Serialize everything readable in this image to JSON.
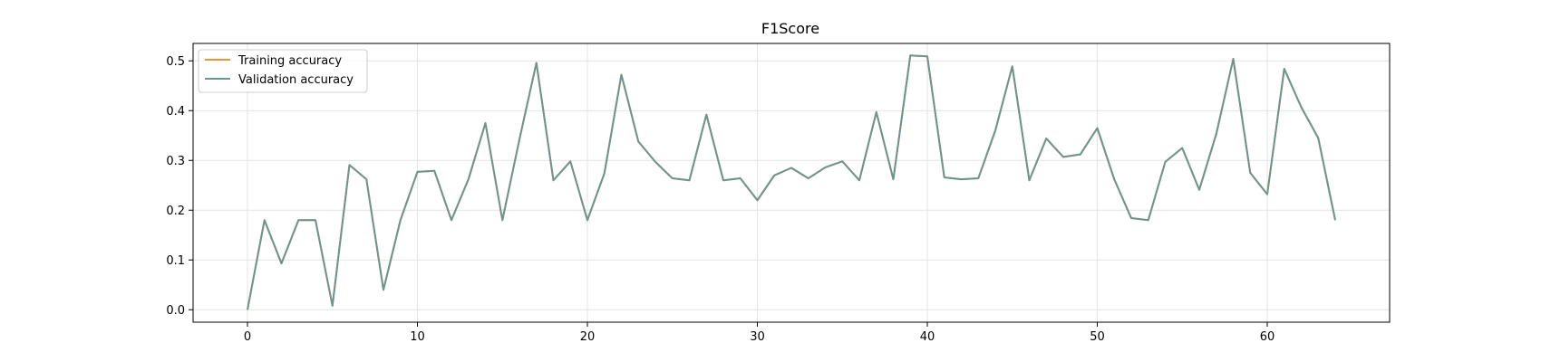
{
  "chart_data": {
    "type": "line",
    "title": "F1Score",
    "xlabel": "",
    "ylabel": "",
    "xlim": [
      -3.2,
      67.2
    ],
    "ylim": [
      -0.025,
      0.535
    ],
    "xticks": [
      0,
      10,
      20,
      30,
      40,
      50,
      60
    ],
    "yticks": [
      0.0,
      0.1,
      0.2,
      0.3,
      0.4,
      0.5
    ],
    "ytick_labels": [
      "0.0",
      "0.1",
      "0.2",
      "0.3",
      "0.4",
      "0.5"
    ],
    "grid": true,
    "legend_placement": "upper-left",
    "x": [
      0,
      1,
      2,
      3,
      4,
      5,
      6,
      7,
      8,
      9,
      10,
      11,
      12,
      13,
      14,
      15,
      16,
      17,
      18,
      19,
      20,
      21,
      22,
      23,
      24,
      25,
      26,
      27,
      28,
      29,
      30,
      31,
      32,
      33,
      34,
      35,
      36,
      37,
      38,
      39,
      40,
      41,
      42,
      43,
      44,
      45,
      46,
      47,
      48,
      49,
      50,
      51,
      52,
      53,
      54,
      55,
      56,
      57,
      58,
      59,
      60,
      61,
      62,
      63,
      64
    ],
    "series": [
      {
        "name": "Training accuracy",
        "color": "#f0923a",
        "values": [
          0.0,
          0.18,
          0.093,
          0.18,
          0.18,
          0.008,
          0.291,
          0.262,
          0.04,
          0.18,
          0.277,
          0.279,
          0.18,
          0.262,
          0.375,
          0.18,
          0.342,
          0.496,
          0.26,
          0.298,
          0.18,
          0.274,
          0.472,
          0.338,
          0.297,
          0.264,
          0.26,
          0.392,
          0.26,
          0.264,
          0.22,
          0.27,
          0.285,
          0.264,
          0.286,
          0.298,
          0.26,
          0.397,
          0.262,
          0.511,
          0.509,
          0.266,
          0.262,
          0.264,
          0.36,
          0.489,
          0.26,
          0.344,
          0.307,
          0.312,
          0.365,
          0.262,
          0.184,
          0.18,
          0.297,
          0.325,
          0.241,
          0.353,
          0.504,
          0.275,
          0.232,
          0.484,
          0.407,
          0.345,
          0.18
        ]
      },
      {
        "name": "Validation accuracy",
        "color": "#6b9690",
        "values": [
          0.0,
          0.18,
          0.093,
          0.18,
          0.18,
          0.008,
          0.291,
          0.262,
          0.04,
          0.18,
          0.277,
          0.279,
          0.18,
          0.262,
          0.375,
          0.18,
          0.342,
          0.496,
          0.26,
          0.298,
          0.18,
          0.274,
          0.472,
          0.338,
          0.297,
          0.264,
          0.26,
          0.392,
          0.26,
          0.264,
          0.22,
          0.27,
          0.285,
          0.264,
          0.286,
          0.298,
          0.26,
          0.397,
          0.262,
          0.511,
          0.509,
          0.266,
          0.262,
          0.264,
          0.36,
          0.489,
          0.26,
          0.344,
          0.307,
          0.312,
          0.365,
          0.262,
          0.184,
          0.18,
          0.297,
          0.325,
          0.241,
          0.353,
          0.504,
          0.275,
          0.232,
          0.484,
          0.407,
          0.345,
          0.18
        ]
      }
    ]
  }
}
